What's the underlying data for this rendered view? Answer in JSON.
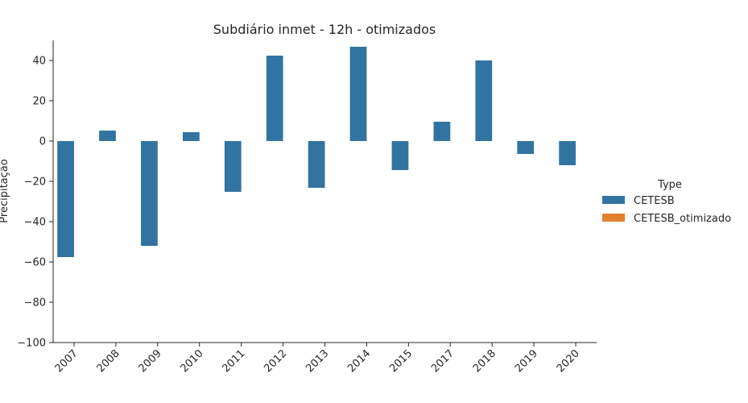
{
  "chart_data": {
    "type": "bar",
    "title": "Subdiário inmet - 12h - otimizados",
    "xlabel": "",
    "ylabel": "Precipitação",
    "ylim": [
      -100,
      50
    ],
    "yticks": [
      40,
      20,
      0,
      -20,
      -40,
      -60,
      -80,
      -100
    ],
    "categories": [
      "2007",
      "2008",
      "2009",
      "2010",
      "2011",
      "2012",
      "2013",
      "2014",
      "2015",
      "2017",
      "2018",
      "2019",
      "2020"
    ],
    "series": [
      {
        "name": "CETESB",
        "color": "#3274a1",
        "values": [
          -57.6,
          5.2,
          -52.0,
          4.4,
          -25.2,
          42.4,
          -23.2,
          46.8,
          -14.4,
          9.6,
          40.0,
          -6.4,
          -12.0
        ]
      },
      {
        "name": "CETESB_otimizado",
        "color": "#e1812c",
        "values": [
          0,
          0,
          0,
          0,
          0,
          0,
          0,
          0,
          0,
          0,
          0,
          0,
          0
        ]
      }
    ],
    "legend": {
      "title": "Type",
      "placement": "right"
    },
    "grid": false
  }
}
